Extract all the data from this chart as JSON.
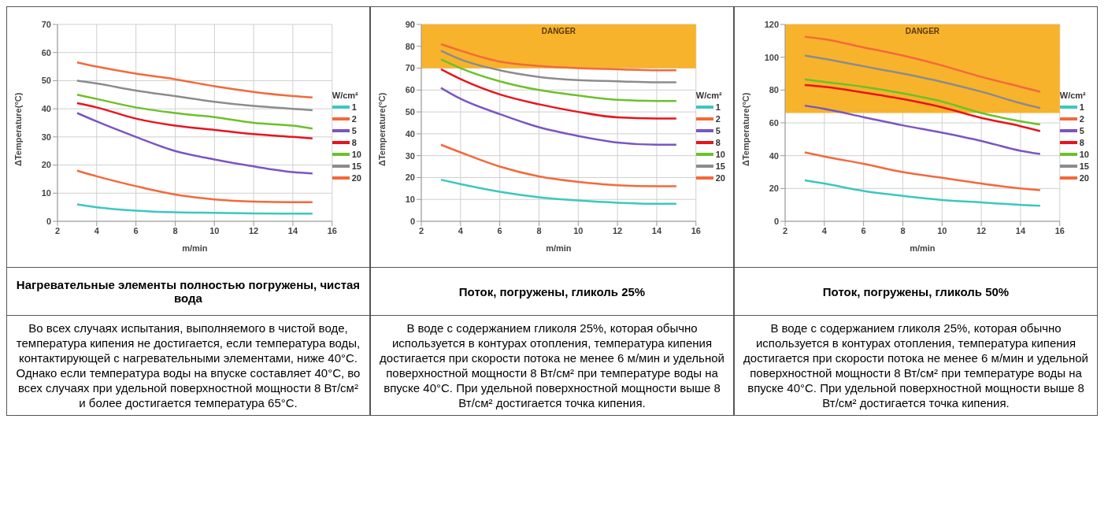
{
  "chart_data": [
    {
      "type": "line",
      "title": "Нагревательные элементы полностью погружены, чистая вода",
      "xlabel": "m/min",
      "ylabel": "ΔTemperature(°C)",
      "legend_title": "W/cm²",
      "legend": "right",
      "grid": true,
      "marker": "none",
      "line_style": "solid",
      "x": [
        3,
        4,
        6,
        8,
        10,
        12,
        14,
        15
      ],
      "xlim": [
        2,
        16
      ],
      "xticks": [
        2,
        4,
        6,
        8,
        10,
        12,
        14,
        16
      ],
      "ylim": [
        0,
        70
      ],
      "yticks": [
        0,
        10,
        20,
        30,
        40,
        50,
        60,
        70
      ],
      "series": [
        {
          "name": "1",
          "color": "#3cc7c0",
          "values": [
            6,
            5,
            3.8,
            3.2,
            3,
            2.8,
            2.7,
            2.7
          ]
        },
        {
          "name": "2",
          "color": "#f4693a",
          "values": [
            18,
            16,
            12.5,
            9.5,
            7.8,
            7,
            6.8,
            6.8
          ]
        },
        {
          "name": "5",
          "color": "#7b55c4",
          "values": [
            38.5,
            35.5,
            30,
            25,
            22,
            19.5,
            17.5,
            17
          ]
        },
        {
          "name": "8",
          "color": "#e8141c",
          "values": [
            42,
            40.5,
            36.5,
            34,
            32.5,
            31,
            30,
            29.5
          ]
        },
        {
          "name": "10",
          "color": "#6cc12a",
          "values": [
            45,
            43.5,
            40.5,
            38.5,
            37,
            35,
            34,
            33
          ]
        },
        {
          "name": "15",
          "color": "#8c8c8c",
          "values": [
            50,
            49,
            46.5,
            44.5,
            42.5,
            41,
            40,
            39.5
          ]
        },
        {
          "name": "20",
          "color": "#f4693a",
          "values": [
            56.5,
            55,
            52.5,
            50.5,
            48,
            46,
            44.5,
            44
          ]
        }
      ],
      "annotations": [
        "Во всех случаях испытания, выполняемого в чистой воде, температура кипения не достигается, если температура воды, контактирующей с нагревательными элементами, ниже 40°C. Однако если температура воды на впуске составляет 40°C, во всех случаях при удельной поверхностной мощности 8 Вт/см² и более достигается температура 65°C."
      ]
    },
    {
      "type": "line",
      "title": "Поток, погружены, гликоль 25%",
      "xlabel": "m/min",
      "ylabel": "ΔTemperature(°C)",
      "legend_title": "W/cm²",
      "legend": "right",
      "grid": true,
      "marker": "none",
      "line_style": "solid",
      "x": [
        3,
        4,
        6,
        8,
        10,
        12,
        14,
        15
      ],
      "xlim": [
        2,
        16
      ],
      "xticks": [
        2,
        4,
        6,
        8,
        10,
        12,
        14,
        16
      ],
      "ylim": [
        0,
        90
      ],
      "yticks": [
        0,
        10,
        20,
        30,
        40,
        50,
        60,
        70,
        80,
        90
      ],
      "bands": [
        {
          "axis": "y",
          "from": 70,
          "to": 90,
          "label": "DANGER",
          "color": "#f7b32b"
        }
      ],
      "series": [
        {
          "name": "1",
          "color": "#3cc7c0",
          "values": [
            19,
            17,
            13.5,
            11,
            9.5,
            8.5,
            8,
            8
          ]
        },
        {
          "name": "2",
          "color": "#f4693a",
          "values": [
            35,
            31.5,
            25,
            20.5,
            18,
            16.5,
            16,
            16
          ]
        },
        {
          "name": "5",
          "color": "#7b55c4",
          "values": [
            61,
            56,
            49,
            43,
            39,
            36,
            35,
            35
          ]
        },
        {
          "name": "8",
          "color": "#e8141c",
          "values": [
            69.5,
            65,
            58,
            53.5,
            50,
            47.5,
            47,
            47
          ]
        },
        {
          "name": "10",
          "color": "#6cc12a",
          "values": [
            74,
            70,
            64,
            60,
            57.5,
            55.5,
            55,
            55
          ]
        },
        {
          "name": "15",
          "color": "#8c8c8c",
          "values": [
            78,
            74,
            69,
            66,
            64.5,
            64,
            63.5,
            63.5
          ]
        },
        {
          "name": "20",
          "color": "#f4693a",
          "values": [
            81,
            78,
            73,
            71,
            70,
            69.5,
            69,
            69
          ]
        }
      ],
      "annotations": [
        "В воде с содержанием гликоля 25%, которая обычно используется в контурах отопления, температура кипения достигается при скорости потока не менее 6 м/мин и удельной поверхностной мощности 8 Вт/см² при температуре воды на впуске 40°C. При удельной поверхностной мощности выше 8 Вт/см² достигается точка кипения."
      ]
    },
    {
      "type": "line",
      "title": "Поток, погружены, гликоль 50%",
      "xlabel": "m/min",
      "ylabel": "ΔTemperature(°C)",
      "legend_title": "W/cm²",
      "legend": "right",
      "grid": true,
      "marker": "none",
      "line_style": "solid",
      "x": [
        3,
        4,
        6,
        8,
        10,
        12,
        14,
        15
      ],
      "xlim": [
        2,
        16
      ],
      "xticks": [
        2,
        4,
        6,
        8,
        10,
        12,
        14,
        16
      ],
      "ylim": [
        0,
        120
      ],
      "yticks": [
        0,
        20,
        40,
        60,
        80,
        100,
        120
      ],
      "bands": [
        {
          "axis": "y",
          "from": 66,
          "to": 120,
          "label": "DANGER",
          "color": "#f7b32b"
        }
      ],
      "series": [
        {
          "name": "1",
          "color": "#3cc7c0",
          "values": [
            25,
            23,
            18.5,
            15.5,
            13,
            11.5,
            10,
            9.5
          ]
        },
        {
          "name": "2",
          "color": "#f4693a",
          "values": [
            42,
            39.5,
            35,
            30,
            26.5,
            23,
            20,
            19
          ]
        },
        {
          "name": "5",
          "color": "#7b55c4",
          "values": [
            70.5,
            68.5,
            63.5,
            58.5,
            54,
            49,
            43,
            41
          ]
        },
        {
          "name": "8",
          "color": "#e8141c",
          "values": [
            83,
            82,
            78.5,
            74.5,
            69.5,
            63,
            58,
            55
          ]
        },
        {
          "name": "10",
          "color": "#6cc12a",
          "values": [
            86.5,
            85,
            82,
            78,
            73,
            66,
            61,
            59
          ]
        },
        {
          "name": "15",
          "color": "#8c8c8c",
          "values": [
            101,
            99,
            94.5,
            90,
            85,
            79,
            72,
            69
          ]
        },
        {
          "name": "20",
          "color": "#f4693a",
          "values": [
            112.5,
            111,
            106,
            101,
            95,
            88,
            82,
            79
          ]
        }
      ],
      "annotations": [
        "В воде с содержанием гликоля 25%, которая обычно используется в контурах отопления, температура кипения достигается при скорости потока не менее 6 м/мин и удельной поверхностной мощности 8 Вт/см² при температуре воды на впуске 40°C. При удельной поверхностной мощности выше 8 Вт/см² достигается точка кипения."
      ]
    }
  ]
}
